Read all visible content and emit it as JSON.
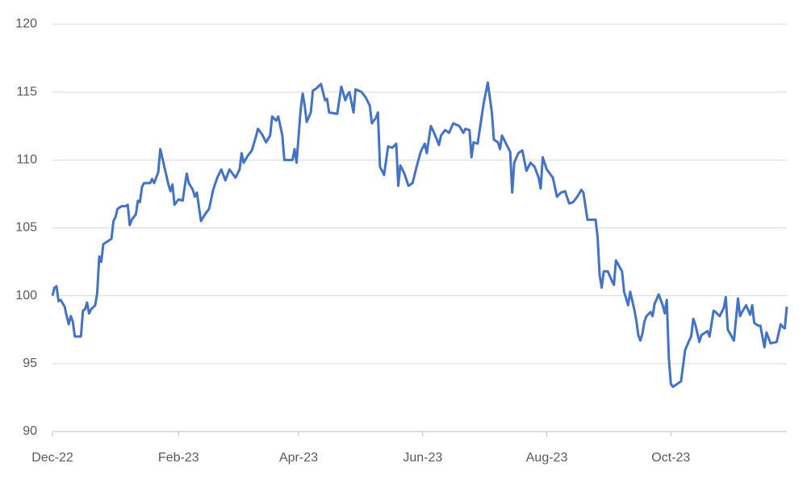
{
  "chart_data": {
    "type": "line",
    "x": [
      0,
      1,
      2,
      3,
      4,
      6,
      7,
      8,
      9,
      10,
      11,
      14,
      15,
      16,
      17,
      18,
      19,
      21,
      22,
      23,
      24,
      25,
      27,
      29,
      30,
      31,
      32,
      34,
      36,
      37,
      38,
      39,
      41,
      42,
      43,
      44,
      45,
      48,
      49,
      50,
      52,
      53,
      55,
      57,
      58,
      59,
      60,
      62,
      64,
      66,
      67,
      69,
      70,
      71,
      73,
      75,
      77,
      79,
      81,
      83,
      85,
      87,
      90,
      92,
      93,
      94,
      96,
      98,
      100,
      101,
      103,
      105,
      107,
      108,
      110,
      111,
      113,
      114,
      118,
      119,
      120,
      122,
      123,
      124,
      125,
      127,
      128,
      130,
      132,
      134,
      135,
      136,
      140,
      142,
      144,
      145,
      146,
      148,
      149,
      152,
      154,
      156,
      157,
      159,
      160,
      161,
      163,
      165,
      167,
      169,
      170,
      171,
      173,
      175,
      177,
      179,
      181,
      183,
      184,
      186,
      187,
      189,
      190,
      191,
      193,
      195,
      197,
      200,
      202,
      203,
      205,
      206,
      207,
      209,
      211,
      212,
      214,
      216,
      217,
      219,
      220,
      221,
      223,
      225,
      226,
      227,
      229,
      231,
      233,
      235,
      237,
      239,
      240,
      241,
      243,
      246,
      248,
      250,
      252,
      254,
      256,
      258,
      260,
      261,
      263,
      266,
      267,
      268,
      269,
      270,
      271,
      273,
      275,
      276,
      277,
      280,
      281,
      283,
      284,
      286,
      287,
      288,
      289,
      290,
      291,
      292,
      294,
      295,
      296,
      298,
      300,
      301,
      302,
      303,
      304,
      305,
      307,
      309,
      311,
      313,
      314,
      315,
      316,
      318,
      319,
      322,
      323,
      325,
      326,
      328,
      330,
      331,
      332,
      335,
      337,
      338,
      339,
      341,
      343,
      344,
      345,
      347,
      348,
      350,
      351,
      353,
      356,
      358,
      359,
      360,
      361
    ],
    "series": [
      {
        "color": "#4472c4",
        "values": [
          100,
          100.6,
          100.7,
          99.6,
          99.7,
          99.2,
          98.5,
          97.9,
          98.5,
          98.1,
          97,
          97,
          98.9,
          99,
          99.5,
          98.7,
          99,
          99.3,
          100.2,
          102.9,
          102.5,
          103.8,
          104,
          104.2,
          105.5,
          105.8,
          106.4,
          106.6,
          106.6,
          106.7,
          105.2,
          105.6,
          106,
          107,
          106.9,
          108,
          108.3,
          108.3,
          108.6,
          108.3,
          109.1,
          110.8,
          109.5,
          108.2,
          107.7,
          108.2,
          106.7,
          107.1,
          107,
          109,
          108.3,
          107.8,
          107.3,
          107.6,
          105.5,
          106,
          106.4,
          107.8,
          108.7,
          109.3,
          108.5,
          109.3,
          108.7,
          109.3,
          110.5,
          109.8,
          110.3,
          110.7,
          111.7,
          112.3,
          111.9,
          111.3,
          111.8,
          113.2,
          112.9,
          113.2,
          111.8,
          110,
          110,
          110.8,
          109.8,
          113.7,
          114.9,
          114,
          112.8,
          113.5,
          115.1,
          115.3,
          115.6,
          114.4,
          114.5,
          113.5,
          113.4,
          115.4,
          114.4,
          114.8,
          115,
          113.5,
          115.2,
          115,
          114.6,
          114,
          112.7,
          113.1,
          113.5,
          109.5,
          108.9,
          111,
          110.9,
          111.2,
          108.1,
          109.6,
          109,
          108.1,
          108.3,
          109.5,
          110.6,
          111.2,
          110.5,
          112.5,
          112.2,
          111.5,
          111.1,
          111.8,
          112.2,
          112,
          112.7,
          112.5,
          112,
          112.3,
          112.2,
          110.2,
          111.3,
          111.2,
          113.2,
          114.2,
          115.7,
          113.5,
          111.5,
          111.3,
          110.8,
          111.8,
          111.2,
          110.6,
          107.6,
          109.8,
          110.5,
          110.7,
          109.2,
          109.8,
          109.5,
          108.7,
          107.9,
          110.2,
          109.3,
          108.7,
          107.3,
          107.6,
          107.7,
          106.8,
          106.9,
          107.3,
          107.8,
          107.6,
          105.6,
          105.6,
          105.6,
          104.3,
          101.5,
          100.6,
          101.8,
          101.8,
          101.1,
          100.8,
          102.6,
          101.8,
          100.3,
          99.3,
          100.3,
          99,
          98.2,
          97.1,
          96.7,
          97.2,
          98.1,
          98.5,
          98.8,
          98.5,
          99.4,
          100.1,
          99.3,
          98.7,
          99.7,
          95.4,
          93.5,
          93.3,
          93.5,
          93.7,
          96,
          96.7,
          97,
          98.3,
          97.9,
          96.6,
          97.1,
          97.4,
          97,
          98.9,
          98.8,
          98.5,
          99.1,
          99.9,
          97.5,
          96.7,
          99.8,
          98.5,
          98.8,
          99.3,
          98.6,
          99.3,
          98,
          97.8,
          97.8,
          96.2,
          97.3,
          96.5,
          96.6,
          97.9,
          97.7,
          97.6,
          99.2
        ]
      }
    ],
    "xlim": [
      0,
      361
    ],
    "xticks": [
      {
        "value": 0,
        "label": "Dec-22"
      },
      {
        "value": 62,
        "label": "Feb-23"
      },
      {
        "value": 121,
        "label": "Apr-23"
      },
      {
        "value": 182,
        "label": "Jun-23"
      },
      {
        "value": 243,
        "label": "Aug-23"
      },
      {
        "value": 304,
        "label": "Oct-23"
      }
    ],
    "ylim": [
      90,
      120
    ],
    "yticks": [
      90,
      95,
      100,
      105,
      110,
      115,
      120
    ],
    "grid": true
  }
}
